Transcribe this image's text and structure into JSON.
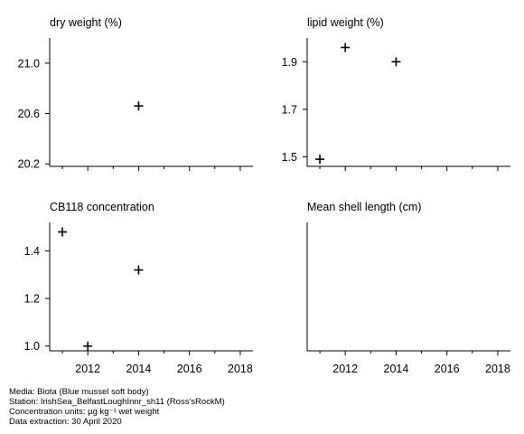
{
  "chart_data": [
    {
      "type": "scatter",
      "title": "dry weight (%)",
      "xlabel": "",
      "ylabel": "",
      "xlim": [
        2010.5,
        2018.5
      ],
      "ylim": [
        20.18,
        21.2
      ],
      "yticks": [
        20.2,
        20.6,
        21.0
      ],
      "ytick_labels": [
        "20.2",
        "20.6",
        "21.0"
      ],
      "xticks": [
        2012,
        2014,
        2016,
        2018
      ],
      "xtick_labels": [],
      "points": [
        {
          "x": 2014,
          "y": 20.66
        }
      ],
      "marker": "+"
    },
    {
      "type": "scatter",
      "title": "lipid weight (%)",
      "xlabel": "",
      "ylabel": "",
      "xlim": [
        2010.5,
        2018.5
      ],
      "ylim": [
        1.46,
        2.0
      ],
      "yticks": [
        1.5,
        1.7,
        1.9
      ],
      "ytick_labels": [
        "1.5",
        "1.7",
        "1.9"
      ],
      "xticks": [
        2012,
        2014,
        2016,
        2018
      ],
      "xtick_labels": [],
      "points": [
        {
          "x": 2011,
          "y": 1.49
        },
        {
          "x": 2012,
          "y": 1.96
        },
        {
          "x": 2014,
          "y": 1.9
        }
      ],
      "marker": "+"
    },
    {
      "type": "scatter",
      "title": "CB118 concentration",
      "xlabel": "",
      "ylabel": "",
      "xlim": [
        2010.5,
        2018.5
      ],
      "ylim": [
        0.98,
        1.52
      ],
      "yticks": [
        1.0,
        1.2,
        1.4
      ],
      "ytick_labels": [
        "1.0",
        "1.2",
        "1.4"
      ],
      "xticks": [
        2012,
        2014,
        2016,
        2018
      ],
      "xtick_labels": [
        "2012",
        "2014",
        "2016",
        "2018"
      ],
      "points": [
        {
          "x": 2011,
          "y": 1.48
        },
        {
          "x": 2012,
          "y": 1.0
        },
        {
          "x": 2014,
          "y": 1.32
        }
      ],
      "marker": "+"
    },
    {
      "type": "scatter",
      "title": "Mean shell length (cm)",
      "xlabel": "",
      "ylabel": "",
      "xlim": [
        2010.5,
        2018.5
      ],
      "ylim": [
        0,
        1
      ],
      "yticks": [],
      "ytick_labels": [],
      "xticks": [
        2012,
        2014,
        2016,
        2018
      ],
      "xtick_labels": [
        "2012",
        "2014",
        "2016",
        "2018"
      ],
      "points": [],
      "marker": "+"
    }
  ],
  "footer": {
    "media": "Media: Biota (Blue mussel soft body)",
    "station": "Station: IrishSea_BelfastLoughInnr_sh11 (Ross'sRockM)",
    "units": "Concentration units:  µg kg⁻¹ wet weight",
    "extraction": "Data extraction: 30 April 2020"
  }
}
